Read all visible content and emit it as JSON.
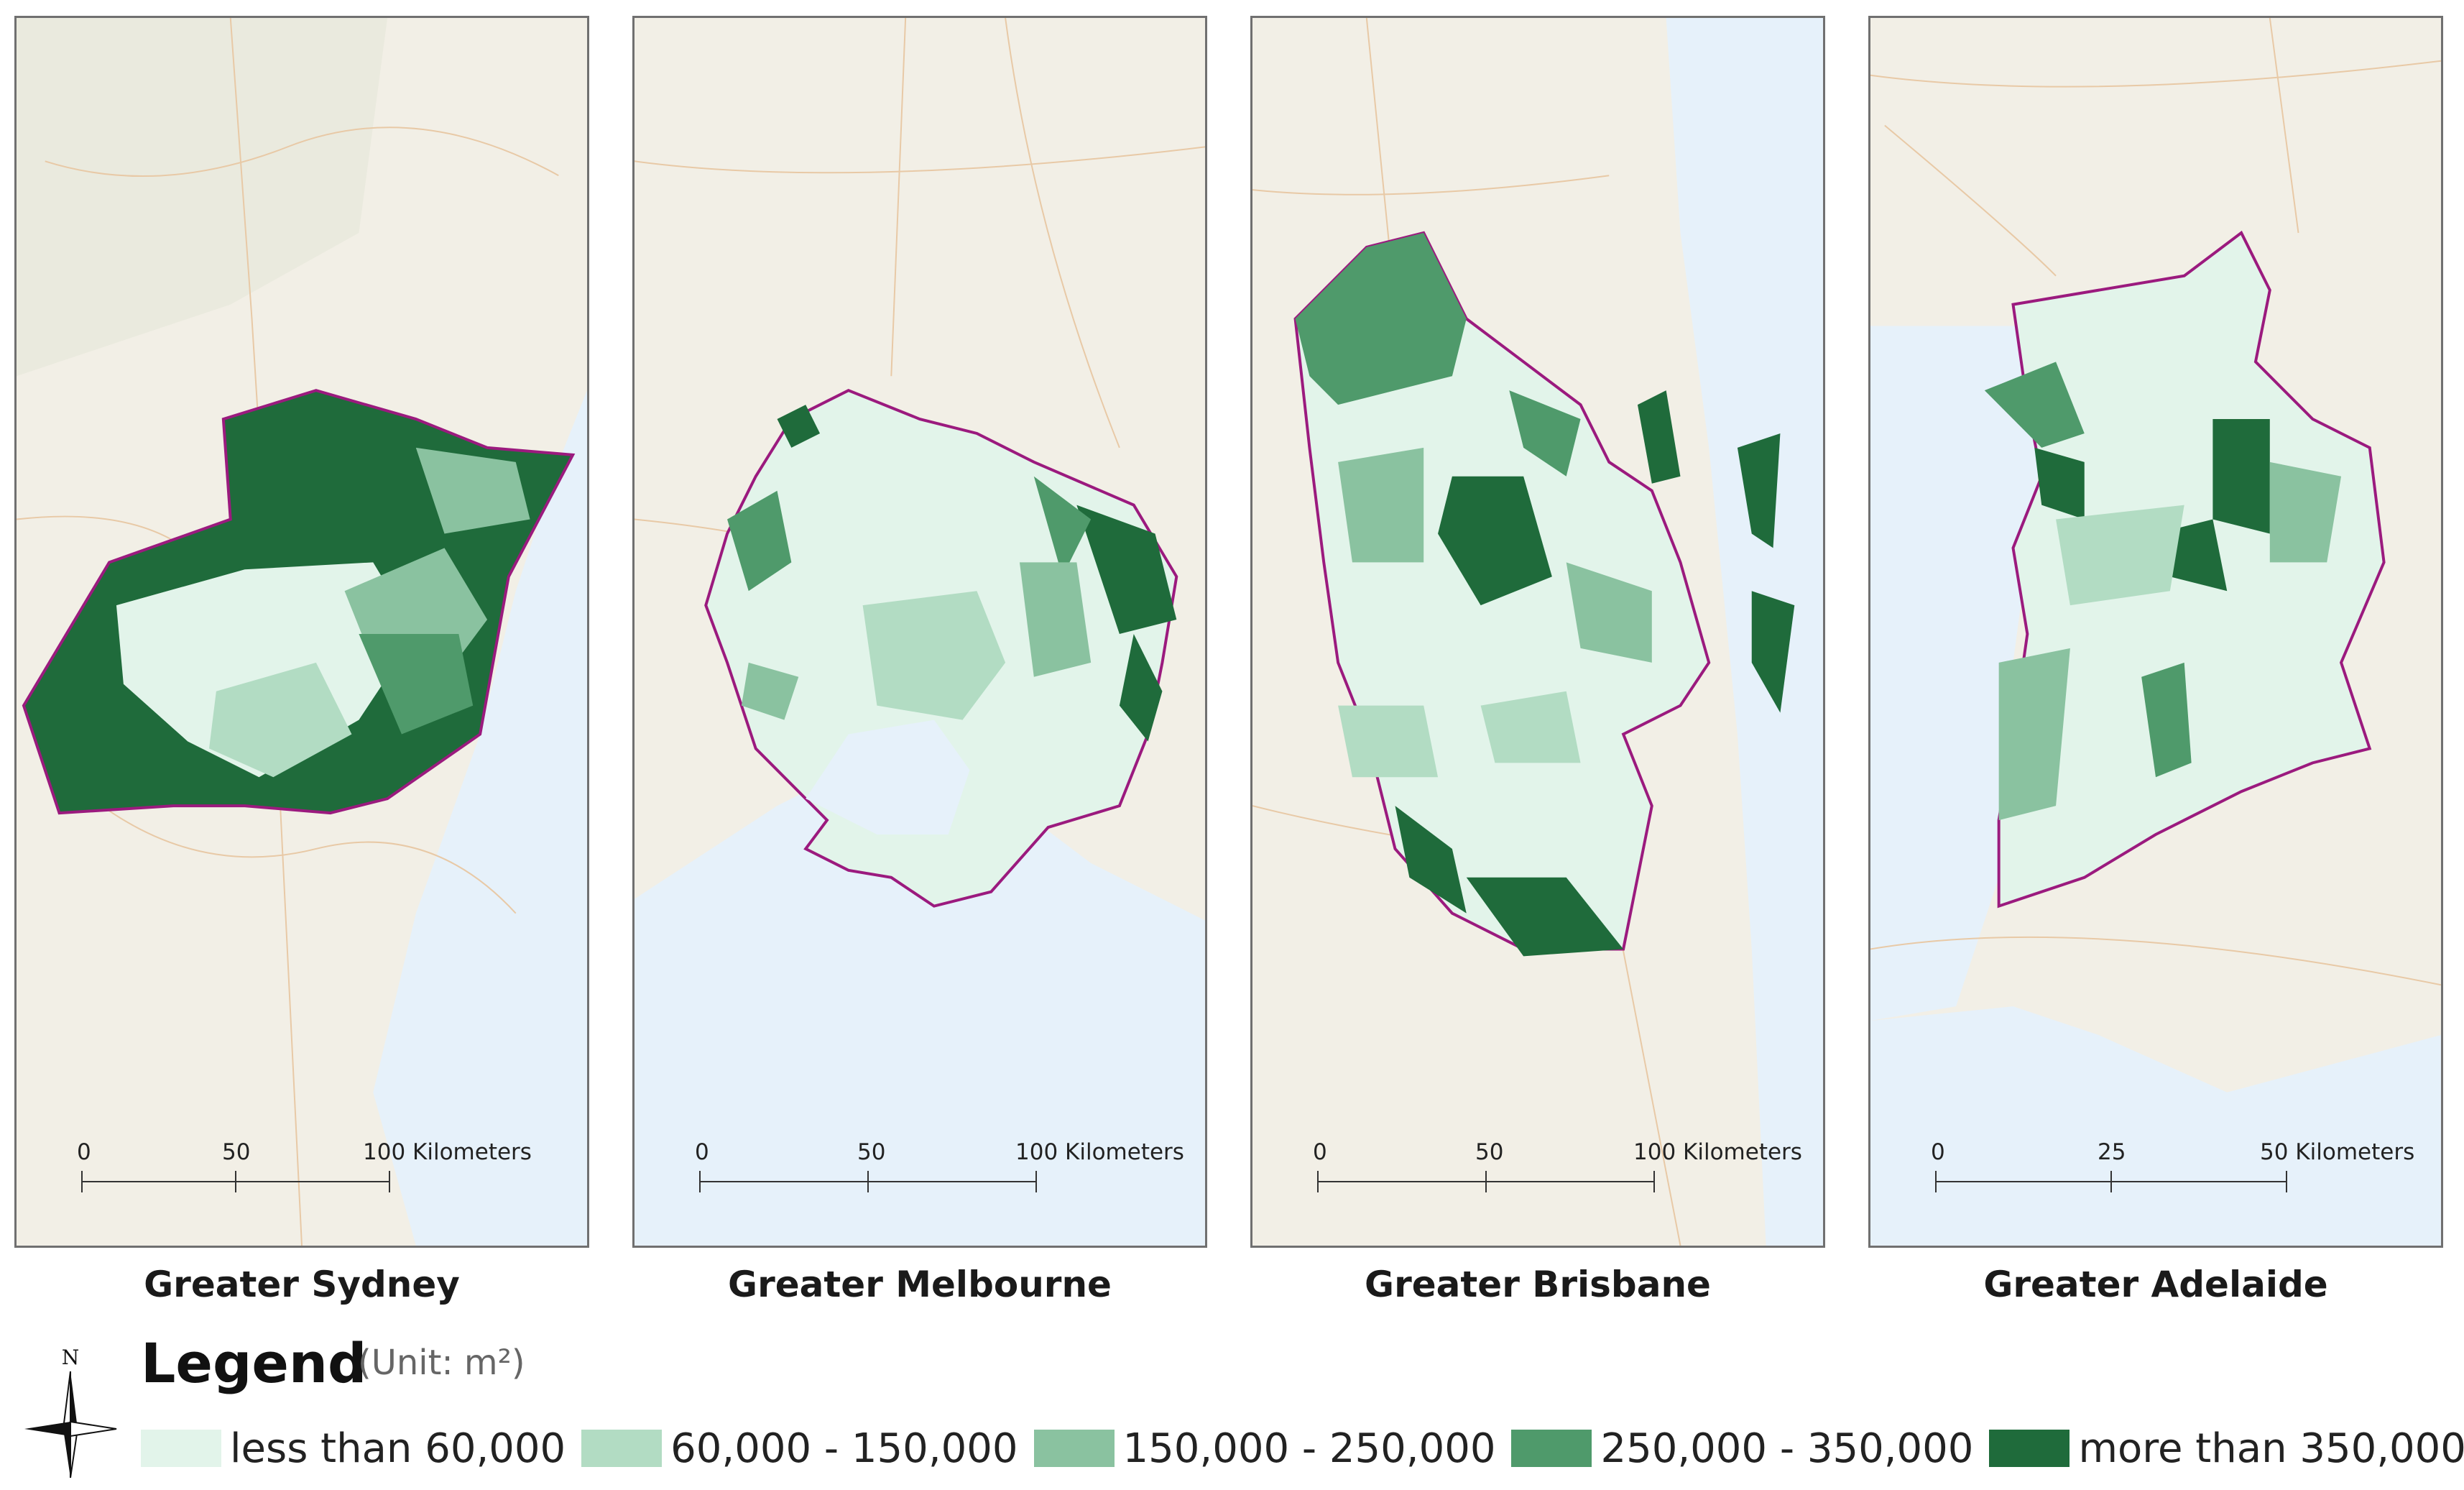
{
  "maps": [
    {
      "id": "sydney",
      "caption": "Greater Sydney",
      "scale": {
        "ticks": [
          "0",
          "50",
          "100 Kilometers"
        ]
      }
    },
    {
      "id": "melbourne",
      "caption": "Greater Melbourne",
      "scale": {
        "ticks": [
          "0",
          "50",
          "100 Kilometers"
        ]
      }
    },
    {
      "id": "brisbane",
      "caption": "Greater Brisbane",
      "scale": {
        "ticks": [
          "0",
          "50",
          "100 Kilometers"
        ]
      }
    },
    {
      "id": "adelaide",
      "caption": "Greater Adelaide",
      "scale": {
        "ticks": [
          "0",
          "25",
          "50 Kilometers"
        ]
      }
    }
  ],
  "legend": {
    "title": "Legend",
    "unit": "(Unit: m²)",
    "north_label": "N",
    "classes": [
      {
        "label": "less than 60,000",
        "color": "#e2f4ea"
      },
      {
        "label": "60,000 - 150,000",
        "color": "#b2dcc3"
      },
      {
        "label": "150,000 - 250,000",
        "color": "#8ac2a0"
      },
      {
        "label": "250,000 - 350,000",
        "color": "#4f9a6b"
      },
      {
        "label": "more than 350,000",
        "color": "#1f6b3b"
      }
    ]
  },
  "colors": {
    "boundary": "#9b1a7e",
    "sea": "#e6f1fa",
    "land": "#f2efe6"
  }
}
